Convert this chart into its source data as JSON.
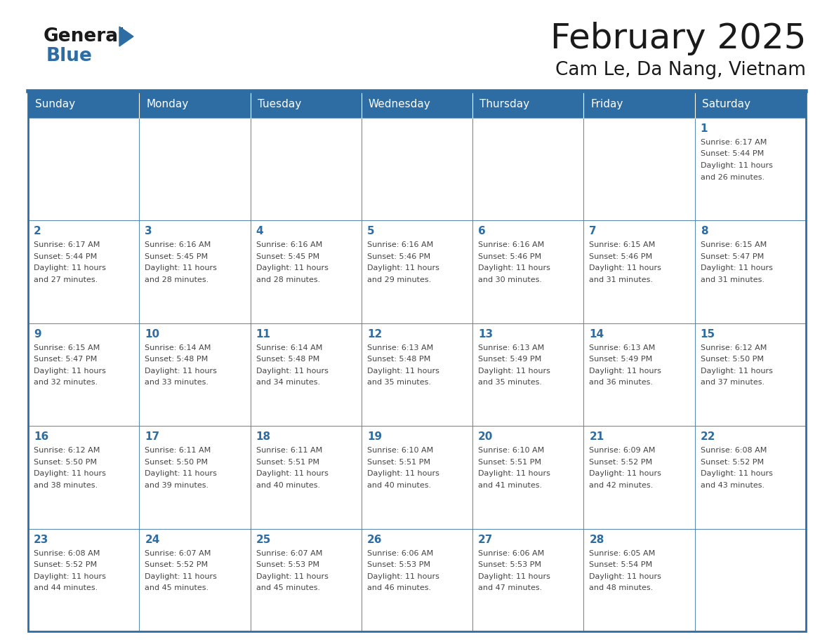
{
  "title": "February 2025",
  "subtitle": "Cam Le, Da Nang, Vietnam",
  "days_of_week": [
    "Sunday",
    "Monday",
    "Tuesday",
    "Wednesday",
    "Thursday",
    "Friday",
    "Saturday"
  ],
  "header_bg": "#2E6DA4",
  "header_text": "#FFFFFF",
  "cell_bg": "#FFFFFF",
  "day_number_color": "#2E6DA4",
  "text_color": "#444444",
  "border_color": "#2E6DA4",
  "line_color": "#AAAAAA",
  "calendar": [
    [
      null,
      null,
      null,
      null,
      null,
      null,
      {
        "day": 1,
        "sunrise": "6:17 AM",
        "sunset": "5:44 PM",
        "daylight": "11 hours and 26 minutes."
      }
    ],
    [
      {
        "day": 2,
        "sunrise": "6:17 AM",
        "sunset": "5:44 PM",
        "daylight": "11 hours and 27 minutes."
      },
      {
        "day": 3,
        "sunrise": "6:16 AM",
        "sunset": "5:45 PM",
        "daylight": "11 hours and 28 minutes."
      },
      {
        "day": 4,
        "sunrise": "6:16 AM",
        "sunset": "5:45 PM",
        "daylight": "11 hours and 28 minutes."
      },
      {
        "day": 5,
        "sunrise": "6:16 AM",
        "sunset": "5:46 PM",
        "daylight": "11 hours and 29 minutes."
      },
      {
        "day": 6,
        "sunrise": "6:16 AM",
        "sunset": "5:46 PM",
        "daylight": "11 hours and 30 minutes."
      },
      {
        "day": 7,
        "sunrise": "6:15 AM",
        "sunset": "5:46 PM",
        "daylight": "11 hours and 31 minutes."
      },
      {
        "day": 8,
        "sunrise": "6:15 AM",
        "sunset": "5:47 PM",
        "daylight": "11 hours and 31 minutes."
      }
    ],
    [
      {
        "day": 9,
        "sunrise": "6:15 AM",
        "sunset": "5:47 PM",
        "daylight": "11 hours and 32 minutes."
      },
      {
        "day": 10,
        "sunrise": "6:14 AM",
        "sunset": "5:48 PM",
        "daylight": "11 hours and 33 minutes."
      },
      {
        "day": 11,
        "sunrise": "6:14 AM",
        "sunset": "5:48 PM",
        "daylight": "11 hours and 34 minutes."
      },
      {
        "day": 12,
        "sunrise": "6:13 AM",
        "sunset": "5:48 PM",
        "daylight": "11 hours and 35 minutes."
      },
      {
        "day": 13,
        "sunrise": "6:13 AM",
        "sunset": "5:49 PM",
        "daylight": "11 hours and 35 minutes."
      },
      {
        "day": 14,
        "sunrise": "6:13 AM",
        "sunset": "5:49 PM",
        "daylight": "11 hours and 36 minutes."
      },
      {
        "day": 15,
        "sunrise": "6:12 AM",
        "sunset": "5:50 PM",
        "daylight": "11 hours and 37 minutes."
      }
    ],
    [
      {
        "day": 16,
        "sunrise": "6:12 AM",
        "sunset": "5:50 PM",
        "daylight": "11 hours and 38 minutes."
      },
      {
        "day": 17,
        "sunrise": "6:11 AM",
        "sunset": "5:50 PM",
        "daylight": "11 hours and 39 minutes."
      },
      {
        "day": 18,
        "sunrise": "6:11 AM",
        "sunset": "5:51 PM",
        "daylight": "11 hours and 40 minutes."
      },
      {
        "day": 19,
        "sunrise": "6:10 AM",
        "sunset": "5:51 PM",
        "daylight": "11 hours and 40 minutes."
      },
      {
        "day": 20,
        "sunrise": "6:10 AM",
        "sunset": "5:51 PM",
        "daylight": "11 hours and 41 minutes."
      },
      {
        "day": 21,
        "sunrise": "6:09 AM",
        "sunset": "5:52 PM",
        "daylight": "11 hours and 42 minutes."
      },
      {
        "day": 22,
        "sunrise": "6:08 AM",
        "sunset": "5:52 PM",
        "daylight": "11 hours and 43 minutes."
      }
    ],
    [
      {
        "day": 23,
        "sunrise": "6:08 AM",
        "sunset": "5:52 PM",
        "daylight": "11 hours and 44 minutes."
      },
      {
        "day": 24,
        "sunrise": "6:07 AM",
        "sunset": "5:52 PM",
        "daylight": "11 hours and 45 minutes."
      },
      {
        "day": 25,
        "sunrise": "6:07 AM",
        "sunset": "5:53 PM",
        "daylight": "11 hours and 45 minutes."
      },
      {
        "day": 26,
        "sunrise": "6:06 AM",
        "sunset": "5:53 PM",
        "daylight": "11 hours and 46 minutes."
      },
      {
        "day": 27,
        "sunrise": "6:06 AM",
        "sunset": "5:53 PM",
        "daylight": "11 hours and 47 minutes."
      },
      {
        "day": 28,
        "sunrise": "6:05 AM",
        "sunset": "5:54 PM",
        "daylight": "11 hours and 48 minutes."
      },
      null
    ]
  ]
}
